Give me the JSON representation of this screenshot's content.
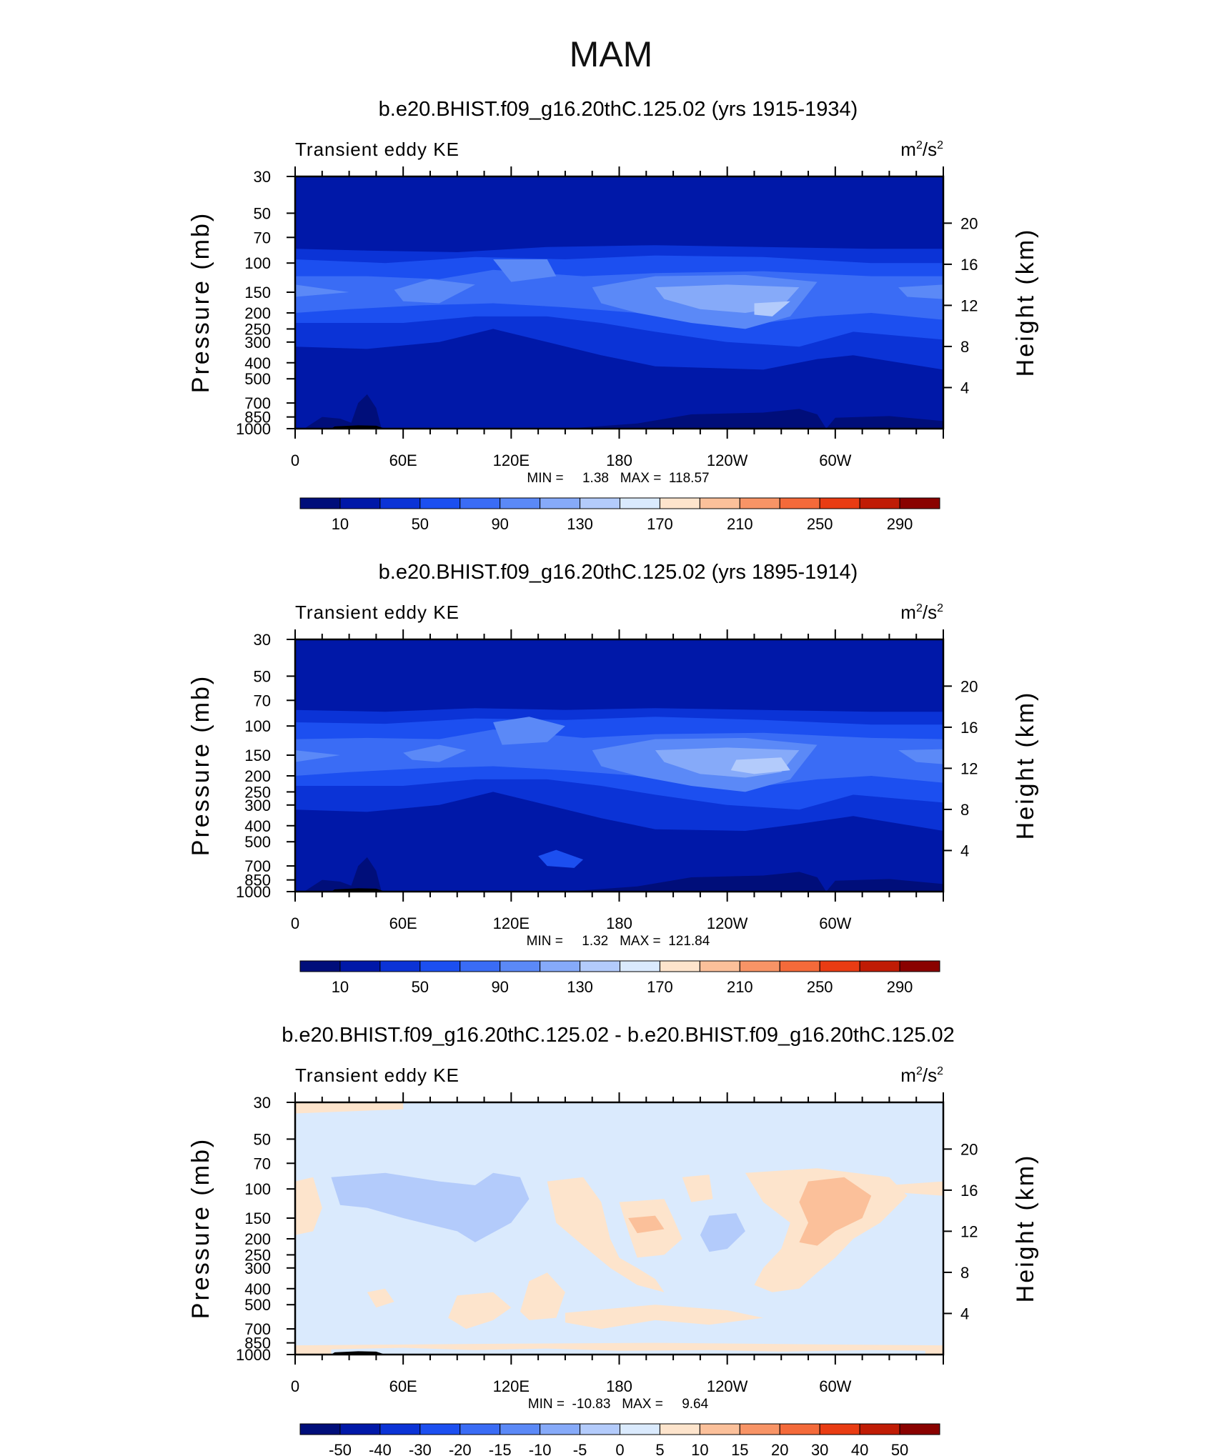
{
  "figure": {
    "title": "MAM"
  },
  "chart_data": [
    {
      "type": "heatmap",
      "title": "b.e20.BHIST.f09_g16.20thC.125.02 (yrs 1915-1934)",
      "variable": "Transient eddy KE",
      "units_base": "m",
      "units_exp": "2",
      "units_sep": "/s",
      "units_exp2": "2",
      "xlabel": "",
      "ylabel": "Pressure (mb)",
      "y2label": "Height (km)",
      "xticks": [
        {
          "lon": 0,
          "label": "0"
        },
        {
          "lon": 60,
          "label": "60E"
        },
        {
          "lon": 120,
          "label": "120E"
        },
        {
          "lon": 180,
          "label": "180"
        },
        {
          "lon": 240,
          "label": "120W"
        },
        {
          "lon": 300,
          "label": "60W"
        }
      ],
      "yticks": [
        {
          "p": 30,
          "label": "30"
        },
        {
          "p": 50,
          "label": "50"
        },
        {
          "p": 70,
          "label": "70"
        },
        {
          "p": 100,
          "label": "100"
        },
        {
          "p": 150,
          "label": "150"
        },
        {
          "p": 200,
          "label": "200"
        },
        {
          "p": 250,
          "label": "250"
        },
        {
          "p": 300,
          "label": "300"
        },
        {
          "p": 400,
          "label": "400"
        },
        {
          "p": 500,
          "label": "500"
        },
        {
          "p": 700,
          "label": "700"
        },
        {
          "p": 850,
          "label": "850"
        },
        {
          "p": 1000,
          "label": "1000"
        }
      ],
      "height_ticks": [
        {
          "km": 20,
          "label": "20"
        },
        {
          "km": 16,
          "label": "16"
        },
        {
          "km": 12,
          "label": "12"
        },
        {
          "km": 8,
          "label": "8"
        },
        {
          "km": 4,
          "label": "4"
        }
      ],
      "ylim": [
        1000,
        30
      ],
      "xlim": [
        0,
        360
      ],
      "stats_text": "MIN =     1.38   MAX =  118.57",
      "min": 1.38,
      "max": 118.57,
      "colorbar": {
        "levels": [
          10,
          30,
          50,
          70,
          90,
          110,
          130,
          150,
          170,
          190,
          210,
          230,
          250,
          270,
          290
        ],
        "labels": [
          "10",
          "50",
          "90",
          "130",
          "170",
          "210",
          "250",
          "290"
        ],
        "colors": [
          "#000e7a",
          "#0018a8",
          "#0b33d6",
          "#1c4ff0",
          "#3a6cf5",
          "#5b89f7",
          "#86aaf9",
          "#b3cbfb",
          "#daeafd",
          "#fde4cc",
          "#fbc09a",
          "#f89466",
          "#f46a3a",
          "#e93c13",
          "#c01c05",
          "#8a0200"
        ]
      }
    },
    {
      "type": "heatmap",
      "title": "b.e20.BHIST.f09_g16.20thC.125.02 (yrs 1895-1914)",
      "variable": "Transient eddy KE",
      "units_base": "m",
      "units_exp": "2",
      "units_sep": "/s",
      "units_exp2": "2",
      "xlabel": "",
      "ylabel": "Pressure (mb)",
      "y2label": "Height (km)",
      "xticks": [
        {
          "lon": 0,
          "label": "0"
        },
        {
          "lon": 60,
          "label": "60E"
        },
        {
          "lon": 120,
          "label": "120E"
        },
        {
          "lon": 180,
          "label": "180"
        },
        {
          "lon": 240,
          "label": "120W"
        },
        {
          "lon": 300,
          "label": "60W"
        }
      ],
      "yticks": [
        {
          "p": 30,
          "label": "30"
        },
        {
          "p": 50,
          "label": "50"
        },
        {
          "p": 70,
          "label": "70"
        },
        {
          "p": 100,
          "label": "100"
        },
        {
          "p": 150,
          "label": "150"
        },
        {
          "p": 200,
          "label": "200"
        },
        {
          "p": 250,
          "label": "250"
        },
        {
          "p": 300,
          "label": "300"
        },
        {
          "p": 400,
          "label": "400"
        },
        {
          "p": 500,
          "label": "500"
        },
        {
          "p": 700,
          "label": "700"
        },
        {
          "p": 850,
          "label": "850"
        },
        {
          "p": 1000,
          "label": "1000"
        }
      ],
      "height_ticks": [
        {
          "km": 20,
          "label": "20"
        },
        {
          "km": 16,
          "label": "16"
        },
        {
          "km": 12,
          "label": "12"
        },
        {
          "km": 8,
          "label": "8"
        },
        {
          "km": 4,
          "label": "4"
        }
      ],
      "ylim": [
        1000,
        30
      ],
      "xlim": [
        0,
        360
      ],
      "stats_text": "MIN =     1.32   MAX =  121.84",
      "min": 1.32,
      "max": 121.84,
      "colorbar": {
        "levels": [
          10,
          30,
          50,
          70,
          90,
          110,
          130,
          150,
          170,
          190,
          210,
          230,
          250,
          270,
          290
        ],
        "labels": [
          "10",
          "50",
          "90",
          "130",
          "170",
          "210",
          "250",
          "290"
        ],
        "colors": [
          "#000e7a",
          "#0018a8",
          "#0b33d6",
          "#1c4ff0",
          "#3a6cf5",
          "#5b89f7",
          "#86aaf9",
          "#b3cbfb",
          "#daeafd",
          "#fde4cc",
          "#fbc09a",
          "#f89466",
          "#f46a3a",
          "#e93c13",
          "#c01c05",
          "#8a0200"
        ]
      }
    },
    {
      "type": "heatmap",
      "title": "b.e20.BHIST.f09_g16.20thC.125.02 - b.e20.BHIST.f09_g16.20thC.125.02",
      "variable": "Transient eddy KE",
      "units_base": "m",
      "units_exp": "2",
      "units_sep": "/s",
      "units_exp2": "2",
      "xlabel": "",
      "ylabel": "Pressure (mb)",
      "y2label": "Height (km)",
      "xticks": [
        {
          "lon": 0,
          "label": "0"
        },
        {
          "lon": 60,
          "label": "60E"
        },
        {
          "lon": 120,
          "label": "120E"
        },
        {
          "lon": 180,
          "label": "180"
        },
        {
          "lon": 240,
          "label": "120W"
        },
        {
          "lon": 300,
          "label": "60W"
        }
      ],
      "yticks": [
        {
          "p": 30,
          "label": "30"
        },
        {
          "p": 50,
          "label": "50"
        },
        {
          "p": 70,
          "label": "70"
        },
        {
          "p": 100,
          "label": "100"
        },
        {
          "p": 150,
          "label": "150"
        },
        {
          "p": 200,
          "label": "200"
        },
        {
          "p": 250,
          "label": "250"
        },
        {
          "p": 300,
          "label": "300"
        },
        {
          "p": 400,
          "label": "400"
        },
        {
          "p": 500,
          "label": "500"
        },
        {
          "p": 700,
          "label": "700"
        },
        {
          "p": 850,
          "label": "850"
        },
        {
          "p": 1000,
          "label": "1000"
        }
      ],
      "height_ticks": [
        {
          "km": 20,
          "label": "20"
        },
        {
          "km": 16,
          "label": "16"
        },
        {
          "km": 12,
          "label": "12"
        },
        {
          "km": 8,
          "label": "8"
        },
        {
          "km": 4,
          "label": "4"
        }
      ],
      "ylim": [
        1000,
        30
      ],
      "xlim": [
        0,
        360
      ],
      "stats_text": "MIN =  -10.83   MAX =     9.64",
      "min": -10.83,
      "max": 9.64,
      "colorbar": {
        "levels": [
          -50,
          -40,
          -30,
          -20,
          -15,
          -10,
          -5,
          0,
          5,
          10,
          15,
          20,
          30,
          40,
          50
        ],
        "labels": [
          "-50",
          "-40",
          "-30",
          "-20",
          "-15",
          "-10",
          "-5",
          "0",
          "5",
          "10",
          "15",
          "20",
          "30",
          "40",
          "50"
        ],
        "colors": [
          "#000e7a",
          "#0018a8",
          "#0b33d6",
          "#1c4ff0",
          "#3a6cf5",
          "#5b89f7",
          "#86aaf9",
          "#b3cbfb",
          "#daeafd",
          "#fde4cc",
          "#fbc09a",
          "#f89466",
          "#f46a3a",
          "#e93c13",
          "#c01c05",
          "#8a0200"
        ]
      }
    }
  ]
}
